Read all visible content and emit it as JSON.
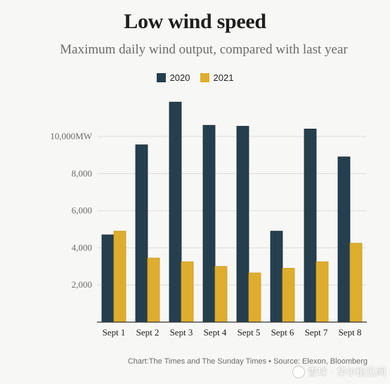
{
  "chart_data": {
    "type": "bar",
    "title": "Low wind speed",
    "subtitle": "Maximum daily wind output, compared with last year",
    "categories": [
      "Sept 1",
      "Sept 2",
      "Sept 3",
      "Sept 4",
      "Sept 5",
      "Sept 6",
      "Sept 7",
      "Sept 8"
    ],
    "series": [
      {
        "name": "2020",
        "color": "#253f4e",
        "values": [
          4700,
          9550,
          11850,
          10600,
          10550,
          4900,
          10400,
          8900
        ]
      },
      {
        "name": "2021",
        "color": "#dfad2e",
        "values": [
          4900,
          3450,
          3250,
          3000,
          2650,
          2900,
          3250,
          4250
        ]
      }
    ],
    "yticks": [
      {
        "value": 2000,
        "label": "2,000"
      },
      {
        "value": 4000,
        "label": "4,000"
      },
      {
        "value": 6000,
        "label": "6,000"
      },
      {
        "value": 8000,
        "label": "8,000"
      },
      {
        "value": 10000,
        "label": "10,000MW"
      }
    ],
    "ylim": [
      0,
      12000
    ],
    "grid": true,
    "legend_position": "top-center",
    "source": "Chart:The Times and The Sunday Times • Source: Elexon, Bloomberg"
  },
  "watermark": {
    "text": "雪球 · 华尔街见闻",
    "icon": "snowball-logo-icon"
  }
}
